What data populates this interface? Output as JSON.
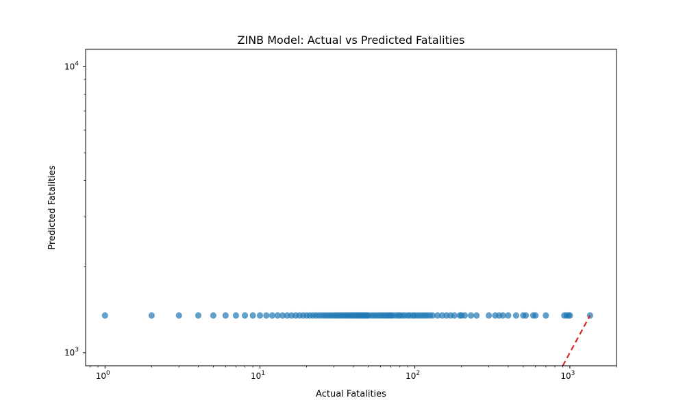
{
  "chart_data": {
    "type": "scatter",
    "title": "ZINB Model: Actual vs Predicted Fatalities",
    "xlabel": "Actual Fatalities",
    "ylabel": "Predicted Fatalities",
    "x_scale": "log",
    "y_scale": "log",
    "xlim": [
      0.75,
      2000
    ],
    "ylim": [
      900,
      11500
    ],
    "x_ticks": [
      {
        "value": 1,
        "base": "10",
        "exp": "0"
      },
      {
        "value": 10,
        "base": "10",
        "exp": "1"
      },
      {
        "value": 100,
        "base": "10",
        "exp": "2"
      },
      {
        "value": 1000,
        "base": "10",
        "exp": "3"
      }
    ],
    "y_ticks": [
      {
        "value": 1000,
        "base": "10",
        "exp": "3"
      },
      {
        "value": 10000,
        "base": "10",
        "exp": "4"
      }
    ],
    "grid": false,
    "point_color": "#1f77b4",
    "reference_line_color": "#d62728",
    "series": [
      {
        "x": [
          1,
          2,
          3,
          4,
          5,
          6,
          7,
          8,
          9,
          10,
          11,
          12,
          13,
          14,
          15,
          16,
          17,
          18,
          19,
          20,
          21,
          22,
          23,
          24,
          25,
          26,
          27,
          28,
          29,
          30,
          31,
          32,
          33,
          34,
          35,
          36,
          37,
          38,
          39,
          40,
          41,
          42,
          43,
          44,
          45,
          46,
          47,
          48,
          49,
          50,
          52,
          54,
          56,
          58,
          60,
          62,
          64,
          66,
          68,
          70,
          72,
          75,
          78,
          80,
          83,
          86,
          90,
          93,
          97,
          100,
          104,
          108,
          112,
          116,
          120,
          125,
          130,
          140,
          150,
          160,
          170,
          180,
          195,
          200,
          210,
          230,
          250,
          300,
          330,
          350,
          370,
          400,
          450,
          500,
          520,
          580,
          600,
          700,
          920,
          950,
          980,
          1000,
          1350
        ],
        "y": [
          1350,
          1350,
          1350,
          1350,
          1350,
          1350,
          1350,
          1350,
          1350,
          1350,
          1350,
          1350,
          1350,
          1350,
          1350,
          1350,
          1350,
          1350,
          1350,
          1350,
          1350,
          1350,
          1350,
          1350,
          1350,
          1350,
          1350,
          1350,
          1350,
          1350,
          1350,
          1350,
          1350,
          1350,
          1350,
          1350,
          1350,
          1350,
          1350,
          1350,
          1350,
          1350,
          1350,
          1350,
          1350,
          1350,
          1350,
          1350,
          1350,
          1350,
          1350,
          1350,
          1350,
          1350,
          1350,
          1350,
          1350,
          1350,
          1350,
          1350,
          1350,
          1350,
          1350,
          1350,
          1350,
          1350,
          1350,
          1350,
          1350,
          1350,
          1350,
          1350,
          1350,
          1350,
          1350,
          1350,
          1350,
          1350,
          1350,
          1350,
          1350,
          1350,
          1350,
          1350,
          1350,
          1350,
          1350,
          1350,
          1350,
          1350,
          1350,
          1350,
          1350,
          1350,
          1350,
          1350,
          1350,
          1350,
          1350,
          1350,
          1350,
          1350,
          1350
        ]
      }
    ],
    "reference_line": {
      "x": [
        880,
        1350
      ],
      "y": [
        880,
        1350
      ],
      "style": "dashed"
    }
  }
}
